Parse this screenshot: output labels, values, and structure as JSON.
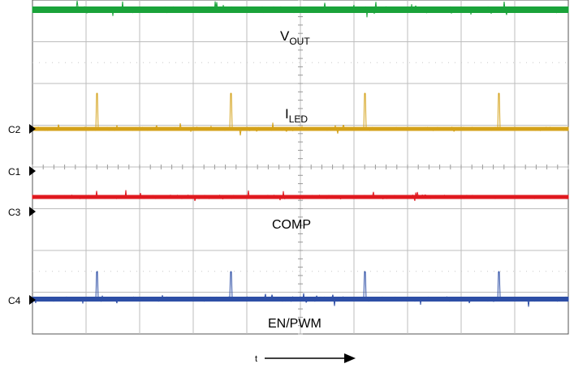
{
  "chart_data": {
    "type": "line",
    "title": "",
    "xlabel": "t",
    "ylabel": "",
    "grid": true,
    "grid_divisions": {
      "horizontal": 10,
      "vertical": 8
    },
    "series": [
      {
        "name": "V_OUT",
        "label_main": "V",
        "label_sub": "OUT",
        "color": "#1aa33a",
        "spikes_at_div": []
      },
      {
        "name": "I_LED",
        "label_main": "I",
        "label_sub": "LED",
        "color": "#d4a21a",
        "spikes_at_div": [
          1.2,
          3.7,
          6.2,
          8.7
        ]
      },
      {
        "name": "COMP",
        "label_main": "COMP",
        "label_sub": "",
        "color": "#e0191f",
        "spikes_at_div": []
      },
      {
        "name": "EN/PWM",
        "label_main": "EN/PWM",
        "label_sub": "",
        "color": "#2e4fa6",
        "spikes_at_div": [
          1.2,
          3.7,
          6.2,
          8.7
        ]
      }
    ],
    "channel_markers": [
      "C2",
      "C1",
      "C3",
      "C4"
    ]
  }
}
